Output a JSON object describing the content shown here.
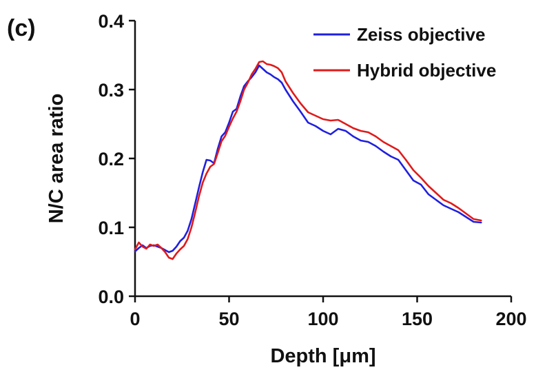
{
  "chart_data": {
    "type": "line",
    "panel_label": "(c)",
    "xlabel": "Depth [μm]",
    "ylabel": "N/C area ratio",
    "xlim": [
      0,
      200
    ],
    "ylim": [
      0,
      0.4
    ],
    "xticks": [
      0,
      50,
      100,
      150,
      200
    ],
    "yticks": [
      0.0,
      0.1,
      0.2,
      0.3,
      0.4
    ],
    "xtick_labels": [
      "0",
      "50",
      "100",
      "150",
      "200"
    ],
    "ytick_labels": [
      "0.0",
      "0.1",
      "0.2",
      "0.3",
      "0.4"
    ],
    "legend_position": "top-right",
    "grid": false,
    "series": [
      {
        "name": "Zeiss objective",
        "color": "#1f1fe0",
        "x": [
          0,
          2,
          4,
          6,
          8,
          10,
          12,
          14,
          16,
          18,
          20,
          22,
          24,
          26,
          28,
          30,
          32,
          34,
          36,
          38,
          40,
          42,
          44,
          46,
          48,
          50,
          52,
          54,
          56,
          58,
          60,
          62,
          64,
          66,
          68,
          70,
          72,
          74,
          76,
          78,
          80,
          84,
          88,
          92,
          96,
          100,
          104,
          108,
          112,
          116,
          120,
          124,
          128,
          132,
          136,
          140,
          144,
          148,
          152,
          156,
          160,
          164,
          168,
          172,
          176,
          180,
          184
        ],
        "y": [
          0.065,
          0.07,
          0.074,
          0.07,
          0.073,
          0.074,
          0.072,
          0.07,
          0.067,
          0.064,
          0.066,
          0.072,
          0.08,
          0.085,
          0.095,
          0.112,
          0.135,
          0.158,
          0.18,
          0.198,
          0.197,
          0.193,
          0.214,
          0.232,
          0.238,
          0.252,
          0.268,
          0.272,
          0.29,
          0.305,
          0.312,
          0.318,
          0.325,
          0.335,
          0.33,
          0.325,
          0.322,
          0.318,
          0.315,
          0.31,
          0.3,
          0.283,
          0.268,
          0.252,
          0.247,
          0.24,
          0.235,
          0.243,
          0.24,
          0.232,
          0.226,
          0.224,
          0.218,
          0.21,
          0.203,
          0.198,
          0.183,
          0.168,
          0.162,
          0.148,
          0.14,
          0.132,
          0.127,
          0.122,
          0.115,
          0.108,
          0.107
        ]
      },
      {
        "name": "Hybrid objective",
        "color": "#e01a1a",
        "x": [
          0,
          2,
          4,
          6,
          8,
          10,
          12,
          14,
          16,
          18,
          20,
          22,
          24,
          26,
          28,
          30,
          32,
          34,
          36,
          38,
          40,
          42,
          44,
          46,
          48,
          50,
          52,
          54,
          56,
          58,
          60,
          62,
          64,
          66,
          68,
          70,
          72,
          74,
          76,
          78,
          80,
          84,
          88,
          92,
          96,
          100,
          104,
          108,
          112,
          116,
          120,
          124,
          128,
          132,
          136,
          140,
          144,
          148,
          152,
          156,
          160,
          164,
          168,
          172,
          176,
          180,
          184
        ],
        "y": [
          0.068,
          0.078,
          0.072,
          0.069,
          0.075,
          0.073,
          0.075,
          0.07,
          0.064,
          0.056,
          0.054,
          0.062,
          0.068,
          0.073,
          0.083,
          0.1,
          0.122,
          0.145,
          0.165,
          0.178,
          0.188,
          0.192,
          0.208,
          0.225,
          0.233,
          0.246,
          0.258,
          0.268,
          0.283,
          0.3,
          0.31,
          0.322,
          0.33,
          0.34,
          0.341,
          0.337,
          0.336,
          0.334,
          0.331,
          0.325,
          0.312,
          0.295,
          0.28,
          0.267,
          0.262,
          0.257,
          0.255,
          0.256,
          0.25,
          0.244,
          0.24,
          0.238,
          0.232,
          0.224,
          0.218,
          0.212,
          0.198,
          0.183,
          0.172,
          0.16,
          0.15,
          0.14,
          0.135,
          0.128,
          0.12,
          0.112,
          0.11
        ]
      }
    ]
  }
}
